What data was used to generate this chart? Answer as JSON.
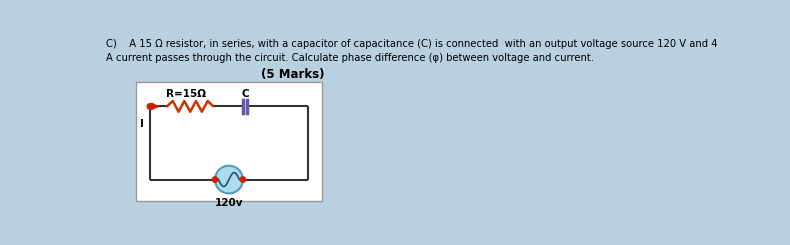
{
  "bg_color": "#b8d0e0",
  "text_color": "#000000",
  "title_line1": "C)    A 15 Ω resistor, in series, with a capacitor of capacitance (C) is connected  with an output voltage source 120 V and 4",
  "title_line2": "A current passes through the circuit. Calculate phase difference (φ) between voltage and current.",
  "title_line3": "(5 Marks)",
  "label_R": "R=15Ω",
  "label_C": "C",
  "label_I": "I",
  "label_V": "120v",
  "resistor_color": "#cc3300",
  "capacitor_color": "#6655aa",
  "wire_color": "#333333",
  "source_color": "#aaddee",
  "source_border": "#5599bb",
  "dot_color": "#cc2200",
  "arrow_color": "#cc2200"
}
